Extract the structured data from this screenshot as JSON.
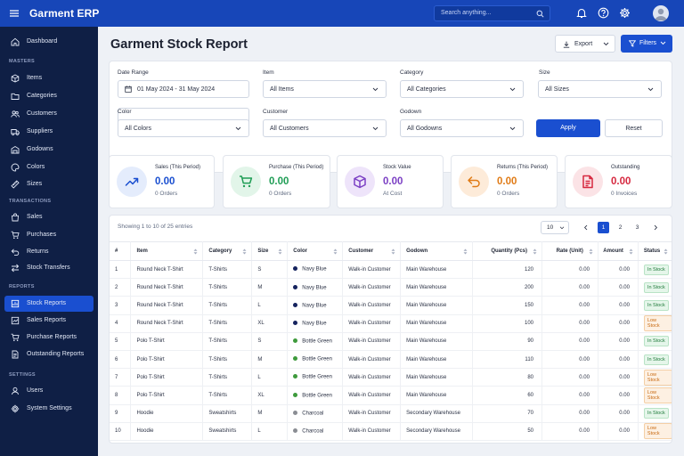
{
  "app": {
    "title": "Garment ERP"
  },
  "search": {
    "placeholder": "Search anything..."
  },
  "sidebar": {
    "dashboard": "Dashboard",
    "sections": {
      "masters": "MASTERS",
      "transactions": "TRANSACTIONS",
      "reports": "REPORTS",
      "settings": "SETTINGS"
    },
    "masters": [
      "Items",
      "Categories",
      "Customers",
      "Suppliers",
      "Godowns",
      "Colors",
      "Sizes"
    ],
    "transactions": [
      "Sales",
      "Purchases",
      "Returns",
      "Stock Transfers"
    ],
    "reports": [
      "Stock Reports",
      "Sales Reports",
      "Purchase Reports",
      "Outstanding Reports"
    ],
    "settings": [
      "Users",
      "System Settings"
    ],
    "active": "Stock Reports"
  },
  "page": {
    "title": "Garment Stock Report",
    "export_label": "Export",
    "filters_label": "Filters"
  },
  "filters": {
    "date_range": {
      "label": "Date Range",
      "value": "01 May 2024 - 31 May 2024"
    },
    "item": {
      "label": "Item",
      "value": "All Items"
    },
    "category": {
      "label": "Category",
      "value": "All Categories"
    },
    "size": {
      "label": "Size",
      "value": "All Sizes"
    },
    "color": {
      "label": "Color",
      "value": "All Colors"
    },
    "customer": {
      "label": "Customer",
      "value": "All Customers"
    },
    "godown": {
      "label": "Godown",
      "value": "All Godowns"
    },
    "apply_label": "Apply",
    "reset_label": "Reset"
  },
  "stats": [
    {
      "label": "Sales (This Period)",
      "value": "0.00",
      "sub": "0 Orders",
      "color": "#1a4fd0",
      "bg": "#e4ecfc",
      "icon": "trend-up-icon"
    },
    {
      "label": "Purchase (This Period)",
      "value": "0.00",
      "sub": "0 Orders",
      "color": "#1f9d55",
      "bg": "#e2f5e9",
      "icon": "cart-icon"
    },
    {
      "label": "Stock Value",
      "value": "0.00",
      "sub": "At Cost",
      "color": "#7b3fc4",
      "bg": "#eee4fa",
      "icon": "box-icon"
    },
    {
      "label": "Returns (This Period)",
      "value": "0.00",
      "sub": "0 Orders",
      "color": "#e07b16",
      "bg": "#fdebd9",
      "icon": "return-icon"
    },
    {
      "label": "Outstanding",
      "value": "0.00",
      "sub": "0 Invoices",
      "color": "#d6283f",
      "bg": "#fbe3e6",
      "icon": "invoice-icon"
    }
  ],
  "table": {
    "info": "Showing 1 to 10 of 25 entries",
    "page_size": "10",
    "pages": [
      "1",
      "2",
      "3"
    ],
    "current_page": "1",
    "columns": [
      "#",
      "Item",
      "Category",
      "Size",
      "Color",
      "Customer",
      "Godown",
      "Quantity (Pcs)",
      "Rate (Unit)",
      "Amount",
      "Status"
    ],
    "rows": [
      [
        "1",
        "Round Neck T-Shirt",
        "T-Shirts",
        "S",
        "Navy Blue",
        "Walk-in Customer",
        "Main Warehouse",
        "120",
        "0.00",
        "0.00",
        "In Stock"
      ],
      [
        "2",
        "Round Neck T-Shirt",
        "T-Shirts",
        "M",
        "Navy Blue",
        "Walk-in Customer",
        "Main Warehouse",
        "200",
        "0.00",
        "0.00",
        "In Stock"
      ],
      [
        "3",
        "Round Neck T-Shirt",
        "T-Shirts",
        "L",
        "Navy Blue",
        "Walk-in Customer",
        "Main Warehouse",
        "150",
        "0.00",
        "0.00",
        "In Stock"
      ],
      [
        "4",
        "Round Neck T-Shirt",
        "T-Shirts",
        "XL",
        "Navy Blue",
        "Walk-in Customer",
        "Main Warehouse",
        "100",
        "0.00",
        "0.00",
        "Low Stock"
      ],
      [
        "5",
        "Polo T-Shirt",
        "T-Shirts",
        "S",
        "Bottle Green",
        "Walk-in Customer",
        "Main Warehouse",
        "90",
        "0.00",
        "0.00",
        "In Stock"
      ],
      [
        "6",
        "Polo T-Shirt",
        "T-Shirts",
        "M",
        "Bottle Green",
        "Walk-in Customer",
        "Main Warehouse",
        "110",
        "0.00",
        "0.00",
        "In Stock"
      ],
      [
        "7",
        "Polo T-Shirt",
        "T-Shirts",
        "L",
        "Bottle Green",
        "Walk-in Customer",
        "Main Warehouse",
        "80",
        "0.00",
        "0.00",
        "Low Stock"
      ],
      [
        "8",
        "Polo T-Shirt",
        "T-Shirts",
        "XL",
        "Bottle Green",
        "Walk-in Customer",
        "Main Warehouse",
        "60",
        "0.00",
        "0.00",
        "Low Stock"
      ],
      [
        "9",
        "Hoodie",
        "Sweatshirts",
        "M",
        "Charcoal",
        "Walk-in Customer",
        "Secondary Warehouse",
        "70",
        "0.00",
        "0.00",
        "In Stock"
      ],
      [
        "10",
        "Hoodie",
        "Sweatshirts",
        "L",
        "Charcoal",
        "Walk-in Customer",
        "Secondary Warehouse",
        "50",
        "0.00",
        "0.00",
        "Low Stock"
      ]
    ],
    "color_swatches": {
      "Navy Blue": "#15235e",
      "Bottle Green": "#3e9a3c",
      "Charcoal": "#8a8d93"
    }
  }
}
